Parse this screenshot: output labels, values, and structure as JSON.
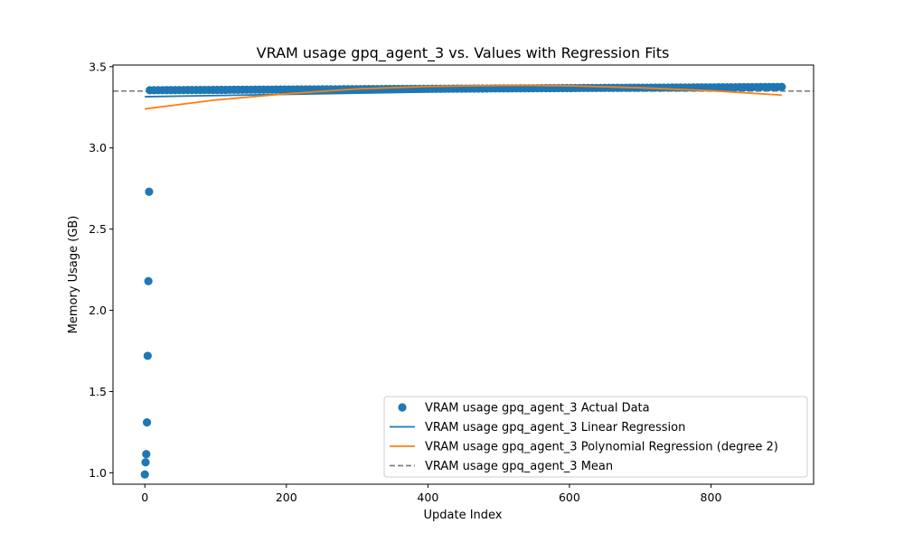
{
  "chart_data": {
    "type": "scatter",
    "title": "VRAM usage gpq_agent_3 vs. Values with Regression Fits",
    "xlabel": "Update Index",
    "ylabel": "Memory Usage (GB)",
    "xlim": [
      -45,
      945
    ],
    "ylim": [
      0.93,
      3.51
    ],
    "x_ticks": [
      0,
      200,
      400,
      600,
      800
    ],
    "y_ticks": [
      1.0,
      1.5,
      2.0,
      2.5,
      3.0,
      3.5
    ],
    "x_tick_labels": [
      "0",
      "200",
      "400",
      "600",
      "800"
    ],
    "y_tick_labels": [
      "1.0",
      "1.5",
      "2.0",
      "2.5",
      "3.0",
      "3.5"
    ],
    "legend_position": "lower-right",
    "series": [
      {
        "name": "VRAM usage gpq_agent_3 Actual Data",
        "kind": "scatter",
        "color": "#1f77b4",
        "outliers": [
          {
            "x": 0,
            "y": 0.99
          },
          {
            "x": 1,
            "y": 1.065
          },
          {
            "x": 2,
            "y": 1.115
          },
          {
            "x": 3,
            "y": 1.31
          },
          {
            "x": 4,
            "y": 1.72
          },
          {
            "x": 5,
            "y": 2.18
          },
          {
            "x": 6,
            "y": 2.73
          }
        ],
        "band": {
          "x_start": 7,
          "x_end": 900,
          "y_low": 3.355,
          "y_high": 3.375
        }
      },
      {
        "name": "VRAM usage gpq_agent_3 Linear Regression",
        "kind": "line",
        "color": "#1f77b4",
        "x": [
          0,
          900
        ],
        "y": [
          3.315,
          3.38
        ]
      },
      {
        "name": "VRAM usage gpq_agent_3 Polynomial Regression (degree 2)",
        "kind": "line",
        "color": "#ff7f0e",
        "x": [
          0,
          100,
          200,
          300,
          400,
          500,
          540,
          600,
          700,
          800,
          900
        ],
        "y": [
          3.24,
          3.295,
          3.333,
          3.363,
          3.378,
          3.384,
          3.385,
          3.382,
          3.37,
          3.352,
          3.325
        ]
      },
      {
        "name": "VRAM usage gpq_agent_3 Mean",
        "kind": "hline",
        "color": "#808080",
        "y": 3.35
      }
    ]
  }
}
